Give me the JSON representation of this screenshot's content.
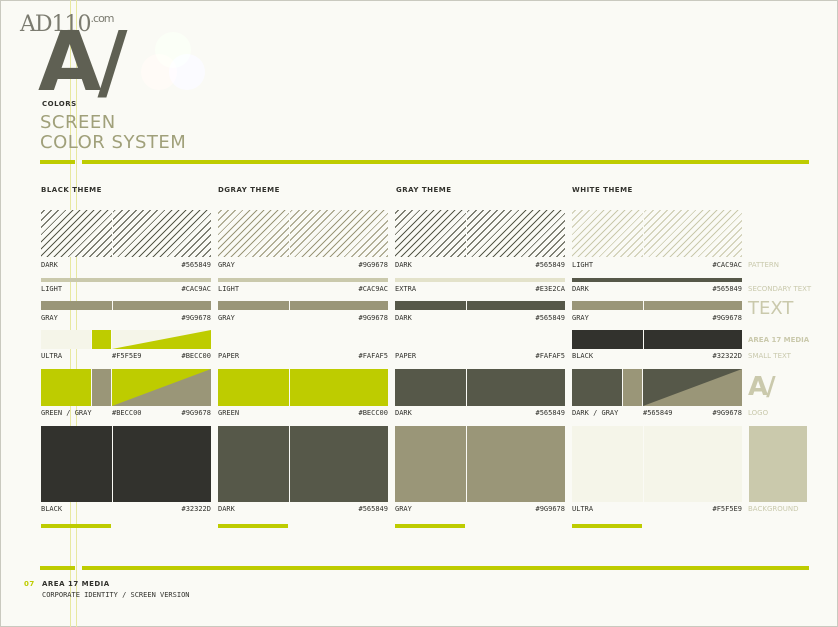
{
  "watermark": {
    "main": "AD110",
    "suffix": ".com"
  },
  "logo_text": "A/",
  "colors_label": "COLORS",
  "title_line1": "SCREEN",
  "title_line2": "COLOR SYSTEM",
  "themes": [
    "BLACK THEME",
    "DGRAY THEME",
    "GRAY THEME",
    "WHITE THEME"
  ],
  "black": {
    "dark": {
      "name": "DARK",
      "hex": "#565849"
    },
    "light": {
      "name": "LIGHT",
      "hex": "#CAC9AC"
    },
    "gray": {
      "name": "GRAY",
      "hex": "#9G9678"
    },
    "ultra": {
      "name": "ULTRA",
      "hex": "#F5F5E9",
      "hex2": "#BECC00"
    },
    "green": {
      "name": "GREEN / GRAY",
      "hex": "#BECC00",
      "hex2": "#9G9678"
    },
    "black": {
      "name": "BLACK",
      "hex": "#32322D"
    }
  },
  "dgray": {
    "gray": {
      "name": "GRAY",
      "hex": "#9G9678"
    },
    "light": {
      "name": "LIGHT",
      "hex": "#CAC9AC"
    },
    "gray2": {
      "name": "GRAY",
      "hex": "#9G9678"
    },
    "paper": {
      "name": "PAPER",
      "hex": "#FAFAF5"
    },
    "green": {
      "name": "GREEN",
      "hex": "#BECC00"
    },
    "dark": {
      "name": "DARK",
      "hex": "#565849"
    }
  },
  "gray": {
    "dark": {
      "name": "DARK",
      "hex": "#565849"
    },
    "extra": {
      "name": "EXTRA",
      "hex": "#E3E2CA"
    },
    "dark2": {
      "name": "DARK",
      "hex": "#565849"
    },
    "paper": {
      "name": "PAPER",
      "hex": "#FAFAF5"
    },
    "dark3": {
      "name": "DARK",
      "hex": "#565849"
    },
    "gray": {
      "name": "GRAY",
      "hex": "#9G9678"
    }
  },
  "white": {
    "light": {
      "name": "LIGHT",
      "hex": "#CAC9AC"
    },
    "dark": {
      "name": "DARK",
      "hex": "#565849"
    },
    "gray": {
      "name": "GRAY",
      "hex": "#9G9678"
    },
    "black": {
      "name": "BLACK",
      "hex": "#32322D"
    },
    "darkgray": {
      "name": "DARK / GRAY",
      "hex": "#565849",
      "hex2": "#9G9678"
    },
    "ultra": {
      "name": "ULTRA",
      "hex": "#F5F5E9"
    }
  },
  "side": {
    "pattern": "PATTERN",
    "secondary": "SECONDARY TEXT",
    "text": "TEXT",
    "area17": "AREA 17 MEDIA",
    "small": "SMALL TEXT",
    "logo_mark": "A/",
    "logo": "LOGO",
    "background": "BACKGROUND"
  },
  "footer": {
    "page": "07",
    "company": "AREA 17 MEDIA",
    "subtitle": "CORPORATE IDENTITY / SCREEN VERSION"
  },
  "palette": {
    "accent": "#BECC00",
    "black": "#32322D",
    "dark": "#565849",
    "gray": "#9G9678",
    "light": "#CAC9AC",
    "ultra": "#F5F5E9",
    "paper": "#FAFAF5",
    "extra": "#E3E2CA"
  }
}
